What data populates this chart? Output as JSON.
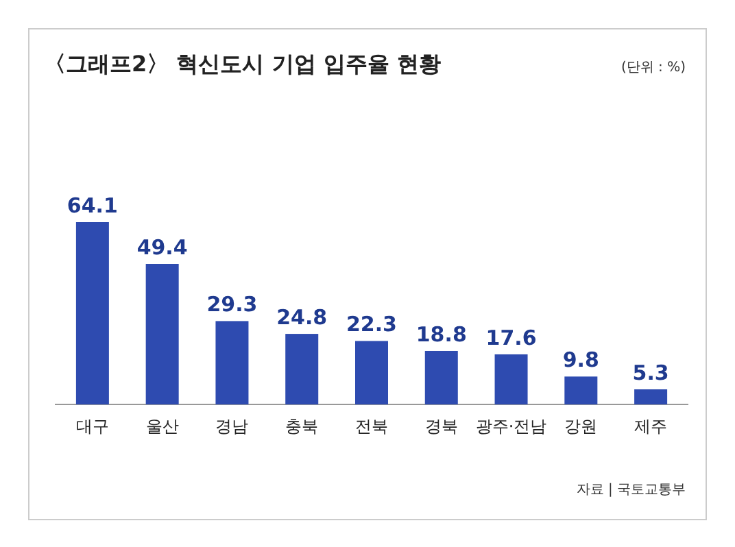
{
  "chart_data": {
    "type": "bar",
    "title": "〈그래프2〉 혁신도시 기업 입주율 현황",
    "subtitle": "(단위 : %)",
    "categories": [
      "대구",
      "울산",
      "경남",
      "충북",
      "전북",
      "경북",
      "광주·전남",
      "강원",
      "제주"
    ],
    "values": [
      64.1,
      49.4,
      29.3,
      24.8,
      22.3,
      18.8,
      17.6,
      9.8,
      5.3
    ],
    "color": "#2e4bb0",
    "data_labels": true,
    "annotations": [
      "자료 | 국토교통부"
    ]
  }
}
